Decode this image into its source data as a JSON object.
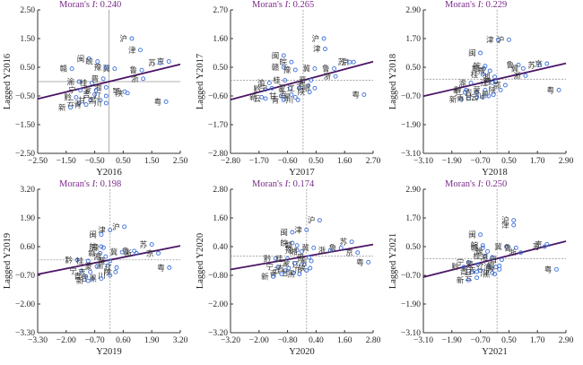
{
  "chart_data": [
    {
      "type": "scatter",
      "title": "Moran's I: 0.240",
      "moran_prefix": "Moran's ",
      "moran_symbol": "I",
      "moran_value": ": 0.240",
      "xlabel": "Y2016",
      "ylabel": "Lagged Y2016",
      "xlim": [
        -2.5,
        2.5
      ],
      "ylim": [
        -2.5,
        2.5
      ],
      "xticks": [
        "-2.50",
        "-1.50",
        "-0.50",
        "0.50",
        "1.50",
        "2.50"
      ],
      "yticks": [
        "-2.50",
        "-1.50",
        "-0.50",
        "0.50",
        "1.50",
        "2.50"
      ],
      "slope": 0.24,
      "points": [
        {
          "label": "沪",
          "x": 0.8,
          "y": 1.5
        },
        {
          "label": "津",
          "x": 1.1,
          "y": 1.1
        },
        {
          "label": "京",
          "x": 2.1,
          "y": 0.7
        },
        {
          "label": "苏",
          "x": 1.8,
          "y": 0.65
        },
        {
          "label": "鲁",
          "x": 1.15,
          "y": 0.4
        },
        {
          "label": "浙",
          "x": 1.2,
          "y": 0.1
        },
        {
          "label": "冀",
          "x": 0.2,
          "y": 0.45
        },
        {
          "label": "豫",
          "x": -0.1,
          "y": 0.5
        },
        {
          "label": "闽",
          "x": -0.7,
          "y": 0.8
        },
        {
          "label": "皖",
          "x": -0.4,
          "y": 0.7
        },
        {
          "label": "赣",
          "x": -1.3,
          "y": 0.45
        },
        {
          "label": "晋",
          "x": -0.2,
          "y": 0.1
        },
        {
          "label": "渝",
          "x": -1.05,
          "y": 0.0
        },
        {
          "label": "桂",
          "x": -0.6,
          "y": -0.05
        },
        {
          "label": "湘",
          "x": -0.1,
          "y": -0.2
        },
        {
          "label": "蒙",
          "x": -0.45,
          "y": -0.3
        },
        {
          "label": "宁",
          "x": -1.0,
          "y": -0.3
        },
        {
          "label": "吉",
          "x": -0.5,
          "y": -0.45
        },
        {
          "label": "辽",
          "x": -0.1,
          "y": -0.5
        },
        {
          "label": "黔",
          "x": -1.15,
          "y": -0.55
        },
        {
          "label": "甘",
          "x": -0.65,
          "y": -0.65
        },
        {
          "label": "黑",
          "x": -0.3,
          "y": -0.65
        },
        {
          "label": "鄂",
          "x": 0.55,
          "y": -0.35
        },
        {
          "label": "陕",
          "x": 0.65,
          "y": -0.4
        },
        {
          "label": "云",
          "x": -1.05,
          "y": -0.75
        },
        {
          "label": "青",
          "x": -0.8,
          "y": -0.8
        },
        {
          "label": "川",
          "x": -0.1,
          "y": -0.75
        },
        {
          "label": "新",
          "x": -1.35,
          "y": -0.9
        },
        {
          "label": "粤",
          "x": 2.0,
          "y": -0.7
        }
      ]
    },
    {
      "type": "scatter",
      "title": "Moran's I: 0.265",
      "moran_prefix": "Moran's ",
      "moran_symbol": "I",
      "moran_value": ": 0.265",
      "xlabel": "Y2017",
      "ylabel": "Lagged Y2017",
      "xlim": [
        -2.8,
        2.7
      ],
      "ylim": [
        -2.8,
        2.7
      ],
      "xticks": [
        "-2.80",
        "-1.70",
        "-0.60",
        "0.50",
        "1.60",
        "2.70"
      ],
      "yticks": [
        "-2.80",
        "-1.70",
        "-0.60",
        "0.50",
        "1.60",
        "2.70"
      ],
      "slope": 0.265,
      "points": [
        {
          "label": "沪",
          "x": 0.8,
          "y": 1.6
        },
        {
          "label": "津",
          "x": 0.85,
          "y": 1.2
        },
        {
          "label": "京",
          "x": 1.95,
          "y": 0.7
        },
        {
          "label": "苏",
          "x": 1.8,
          "y": 0.7
        },
        {
          "label": "鲁",
          "x": 1.2,
          "y": 0.45
        },
        {
          "label": "浙",
          "x": 1.25,
          "y": 0.15
        },
        {
          "label": "冀",
          "x": 0.45,
          "y": 0.45
        },
        {
          "label": "晋",
          "x": 0.3,
          "y": 0.0
        },
        {
          "label": "闽",
          "x": -0.75,
          "y": 0.95
        },
        {
          "label": "皖",
          "x": -0.45,
          "y": 0.7
        },
        {
          "label": "赣",
          "x": -0.75,
          "y": 0.5
        },
        {
          "label": "豫",
          "x": -0.3,
          "y": 0.4
        },
        {
          "label": "桂",
          "x": -0.7,
          "y": 0.0
        },
        {
          "label": "渝",
          "x": -1.3,
          "y": -0.1
        },
        {
          "label": "湘",
          "x": 0.2,
          "y": -0.2
        },
        {
          "label": "鄂",
          "x": 0.45,
          "y": -0.3
        },
        {
          "label": "蒙",
          "x": -0.5,
          "y": -0.3
        },
        {
          "label": "黔",
          "x": -1.45,
          "y": -0.35
        },
        {
          "label": "宁",
          "x": -1.2,
          "y": -0.3
        },
        {
          "label": "辽",
          "x": -0.15,
          "y": -0.3
        },
        {
          "label": "陕",
          "x": 0.25,
          "y": -0.45
        },
        {
          "label": "甘",
          "x": -0.85,
          "y": -0.6
        },
        {
          "label": "吉",
          "x": -0.45,
          "y": -0.55
        },
        {
          "label": "黑",
          "x": -0.3,
          "y": -0.65
        },
        {
          "label": "新",
          "x": -1.6,
          "y": -0.65
        },
        {
          "label": "云",
          "x": -1.45,
          "y": -0.7
        },
        {
          "label": "青",
          "x": -0.75,
          "y": -0.75
        },
        {
          "label": "川",
          "x": -0.2,
          "y": -0.75
        },
        {
          "label": "粤",
          "x": 2.35,
          "y": -0.55
        }
      ]
    },
    {
      "type": "scatter",
      "title": "Moran's I: 0.229",
      "moran_prefix": "Moran's ",
      "moran_symbol": "I",
      "moran_value": ": 0.229",
      "xlabel": "Y2018",
      "ylabel": "Lagged Y2018",
      "xlim": [
        -3.1,
        2.9
      ],
      "ylim": [
        -3.1,
        2.9
      ],
      "xticks": [
        "-3.10",
        "-1.90",
        "-0.70",
        "0.50",
        "1.70",
        "2.90"
      ],
      "yticks": [
        "-3.10",
        "-1.90",
        "-0.70",
        "0.50",
        "1.70",
        "2.90"
      ],
      "slope": 0.229,
      "points": [
        {
          "label": "津",
          "x": 0.05,
          "y": 1.65
        },
        {
          "label": "沪",
          "x": 0.5,
          "y": 1.65
        },
        {
          "label": "京",
          "x": 2.1,
          "y": 0.65
        },
        {
          "label": "苏",
          "x": 1.8,
          "y": 0.6
        },
        {
          "label": "鲁",
          "x": 0.9,
          "y": 0.6
        },
        {
          "label": "冀",
          "x": 1.1,
          "y": 0.45
        },
        {
          "label": "浙",
          "x": 1.2,
          "y": 0.15
        },
        {
          "label": "闽",
          "x": -0.7,
          "y": 1.1
        },
        {
          "label": "皖",
          "x": -0.5,
          "y": 0.55
        },
        {
          "label": "赣",
          "x": -0.55,
          "y": 0.45
        },
        {
          "label": "豫",
          "x": -0.3,
          "y": 0.35
        },
        {
          "label": "湘",
          "x": -0.1,
          "y": 0.1
        },
        {
          "label": "桂",
          "x": -0.6,
          "y": 0.2
        },
        {
          "label": "晋",
          "x": -0.05,
          "y": -0.1
        },
        {
          "label": "渝",
          "x": -1.1,
          "y": -0.15
        },
        {
          "label": "江",
          "x": -0.2,
          "y": -0.15
        },
        {
          "label": "鄂",
          "x": 0.35,
          "y": -0.25
        },
        {
          "label": "黔",
          "x": -1.3,
          "y": -0.45
        },
        {
          "label": "宁",
          "x": -1.35,
          "y": -0.55
        },
        {
          "label": "吉",
          "x": -0.85,
          "y": -0.55
        },
        {
          "label": "蒙",
          "x": -0.5,
          "y": -0.45
        },
        {
          "label": "陕",
          "x": 0.15,
          "y": -0.45
        },
        {
          "label": "黑",
          "x": -0.15,
          "y": -0.65
        },
        {
          "label": "新",
          "x": -1.5,
          "y": -0.85
        },
        {
          "label": "青",
          "x": -1.2,
          "y": -0.8
        },
        {
          "label": "甘",
          "x": -0.85,
          "y": -0.75
        },
        {
          "label": "云",
          "x": -0.6,
          "y": -0.75
        },
        {
          "label": "川",
          "x": -0.35,
          "y": -0.7
        },
        {
          "label": "粤",
          "x": 2.6,
          "y": -0.45
        }
      ]
    },
    {
      "type": "scatter",
      "title": "Moran's I: 0.198",
      "moran_prefix": "Moran's ",
      "moran_symbol": "I",
      "moran_value": ": 0.198",
      "xlabel": "Y2019",
      "ylabel": "Lagged Y2019",
      "xlim": [
        -3.3,
        3.2
      ],
      "ylim": [
        -3.3,
        3.2
      ],
      "xticks": [
        "-3.30",
        "-2.00",
        "-0.70",
        "0.60",
        "1.90",
        "3.20"
      ],
      "yticks": [
        "-3.30",
        "-2.00",
        "-0.70",
        "0.60",
        "1.90",
        "3.20"
      ],
      "slope": 0.198,
      "points": [
        {
          "label": "沪",
          "x": 0.65,
          "y": 1.5
        },
        {
          "label": "津",
          "x": 0.0,
          "y": 1.35
        },
        {
          "label": "闽",
          "x": -0.4,
          "y": 1.15
        },
        {
          "label": "苏",
          "x": 1.9,
          "y": 0.7
        },
        {
          "label": "鲁",
          "x": 1.1,
          "y": 0.4
        },
        {
          "label": "浙",
          "x": 1.2,
          "y": 0.3
        },
        {
          "label": "冀",
          "x": 0.55,
          "y": 0.35
        },
        {
          "label": "京",
          "x": 2.2,
          "y": 0.3
        },
        {
          "label": "皖",
          "x": -0.4,
          "y": 0.6
        },
        {
          "label": "豫",
          "x": -0.3,
          "y": 0.55
        },
        {
          "label": "赣",
          "x": -0.45,
          "y": 0.3
        },
        {
          "label": "湘",
          "x": -0.2,
          "y": 0.15
        },
        {
          "label": "黔",
          "x": -1.5,
          "y": 0.0
        },
        {
          "label": "桂",
          "x": -1.0,
          "y": -0.05
        },
        {
          "label": "晋",
          "x": 0.0,
          "y": -0.05
        },
        {
          "label": "渝",
          "x": -0.1,
          "y": -0.25
        },
        {
          "label": "辽",
          "x": 0.3,
          "y": -0.35
        },
        {
          "label": "蒙",
          "x": -0.6,
          "y": -0.3
        },
        {
          "label": "宁",
          "x": -1.3,
          "y": -0.5
        },
        {
          "label": "吉",
          "x": -0.9,
          "y": -0.55
        },
        {
          "label": "陕",
          "x": 0.25,
          "y": -0.55
        },
        {
          "label": "川",
          "x": 0.0,
          "y": -0.7
        },
        {
          "label": "青",
          "x": -1.1,
          "y": -0.75
        },
        {
          "label": "甘",
          "x": -0.8,
          "y": -0.85
        },
        {
          "label": "黑",
          "x": -0.4,
          "y": -0.85
        },
        {
          "label": "新",
          "x": -1.0,
          "y": -0.95
        },
        {
          "label": "粤",
          "x": 2.7,
          "y": -0.35
        }
      ]
    },
    {
      "type": "scatter",
      "title": "Moran's I: 0.174",
      "moran_prefix": "Moran's ",
      "moran_symbol": "I",
      "moran_value": ": 0.174",
      "xlabel": "Y2020",
      "ylabel": "Lagged Y2020",
      "xlim": [
        -3.2,
        2.8
      ],
      "ylim": [
        -3.2,
        2.8
      ],
      "xticks": [
        "-3.20",
        "-2.00",
        "-0.80",
        "0.40",
        "1.60",
        "2.80"
      ],
      "yticks": [
        "-3.20",
        "-2.00",
        "-0.80",
        "0.40",
        "1.60",
        "2.80"
      ],
      "slope": 0.174,
      "points": [
        {
          "label": "沪",
          "x": 0.55,
          "y": 1.5
        },
        {
          "label": "津",
          "x": 0.0,
          "y": 1.1
        },
        {
          "label": "闽",
          "x": -0.6,
          "y": 1.0
        },
        {
          "label": "苏",
          "x": 1.9,
          "y": 0.6
        },
        {
          "label": "鲁",
          "x": 1.45,
          "y": 0.35
        },
        {
          "label": "浙",
          "x": 1.0,
          "y": 0.25
        },
        {
          "label": "冀",
          "x": 0.3,
          "y": 0.35
        },
        {
          "label": "京",
          "x": 2.15,
          "y": 0.15
        },
        {
          "label": "皖",
          "x": -0.6,
          "y": 0.55
        },
        {
          "label": "赣",
          "x": -0.4,
          "y": 0.45
        },
        {
          "label": "豫",
          "x": -0.4,
          "y": 0.25
        },
        {
          "label": "湘",
          "x": -0.2,
          "y": 0.2
        },
        {
          "label": "黔",
          "x": -1.3,
          "y": -0.1
        },
        {
          "label": "桂",
          "x": -0.8,
          "y": -0.1
        },
        {
          "label": "晋",
          "x": 0.1,
          "y": -0.05
        },
        {
          "label": "渝",
          "x": 0.2,
          "y": -0.2
        },
        {
          "label": "蒙",
          "x": -0.5,
          "y": -0.3
        },
        {
          "label": "辽",
          "x": -0.1,
          "y": -0.35
        },
        {
          "label": "宁",
          "x": -1.2,
          "y": -0.45
        },
        {
          "label": "吉",
          "x": -0.75,
          "y": -0.5
        },
        {
          "label": "陕",
          "x": 0.15,
          "y": -0.5
        },
        {
          "label": "云",
          "x": -0.9,
          "y": -0.6
        },
        {
          "label": "甘",
          "x": -0.55,
          "y": -0.7
        },
        {
          "label": "川",
          "x": 0.0,
          "y": -0.6
        },
        {
          "label": "青",
          "x": -1.05,
          "y": -0.75
        },
        {
          "label": "黑",
          "x": -0.3,
          "y": -0.75
        },
        {
          "label": "新",
          "x": -1.4,
          "y": -0.85
        },
        {
          "label": "粤",
          "x": 2.6,
          "y": -0.25
        }
      ]
    },
    {
      "type": "scatter",
      "title": "Moran's I: 0.250",
      "moran_prefix": "Moran's ",
      "moran_symbol": "I",
      "moran_value": ": 0.250",
      "xlabel": "Y2021",
      "ylabel": "Lagged Y2021",
      "xlim": [
        -3.1,
        2.9
      ],
      "ylim": [
        -3.1,
        2.9
      ],
      "xticks": [
        "-3.10",
        "-1.90",
        "-0.70",
        "0.50",
        "1.70",
        "2.90"
      ],
      "yticks": [
        "-3.10",
        "-1.90",
        "-0.70",
        "0.50",
        "1.70",
        "2.90"
      ],
      "slope": 0.25,
      "points": [
        {
          "label": "沪",
          "x": 0.7,
          "y": 1.6
        },
        {
          "label": "津",
          "x": 0.7,
          "y": 1.4
        },
        {
          "label": "闽",
          "x": -0.7,
          "y": 1.0
        },
        {
          "label": "京",
          "x": 2.1,
          "y": 0.6
        },
        {
          "label": "苏",
          "x": 2.0,
          "y": 0.5
        },
        {
          "label": "冀",
          "x": 0.4,
          "y": 0.5
        },
        {
          "label": "鲁",
          "x": 0.8,
          "y": 0.45
        },
        {
          "label": "浙",
          "x": 1.0,
          "y": 0.25
        },
        {
          "label": "皖",
          "x": -0.6,
          "y": 0.55
        },
        {
          "label": "赣",
          "x": -0.6,
          "y": 0.45
        },
        {
          "label": "豫",
          "x": -0.4,
          "y": 0.3
        },
        {
          "label": "桂",
          "x": -0.5,
          "y": 0.1
        },
        {
          "label": "晋",
          "x": 0.2,
          "y": -0.05
        },
        {
          "label": "湘",
          "x": -0.2,
          "y": 0.05
        },
        {
          "label": "宁",
          "x": -1.2,
          "y": -0.15
        },
        {
          "label": "蒙",
          "x": -0.8,
          "y": -0.25
        },
        {
          "label": "鄂",
          "x": 0.1,
          "y": -0.3
        },
        {
          "label": "辽",
          "x": -0.35,
          "y": -0.35
        },
        {
          "label": "渝",
          "x": -0.05,
          "y": -0.35
        },
        {
          "label": "黔",
          "x": -1.4,
          "y": -0.35
        },
        {
          "label": "陕",
          "x": 0.1,
          "y": -0.45
        },
        {
          "label": "吉",
          "x": -0.7,
          "y": -0.5
        },
        {
          "label": "青",
          "x": -1.05,
          "y": -0.55
        },
        {
          "label": "甘",
          "x": -0.85,
          "y": -0.55
        },
        {
          "label": "川",
          "x": -0.2,
          "y": -0.6
        },
        {
          "label": "黑",
          "x": -0.1,
          "y": -0.65
        },
        {
          "label": "云",
          "x": -0.85,
          "y": -0.8
        },
        {
          "label": "新",
          "x": -1.2,
          "y": -0.9
        },
        {
          "label": "粤",
          "x": 2.5,
          "y": -0.45
        }
      ]
    }
  ]
}
